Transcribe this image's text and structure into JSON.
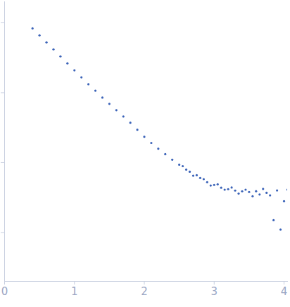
{
  "chart_data": {
    "type": "scatter",
    "log": "y",
    "tick_labels": "x",
    "grid": false,
    "color": "#3b63b8",
    "marker": "circle",
    "x": [
      0.4,
      0.5,
      0.6,
      0.7,
      0.8,
      0.9,
      1.0,
      1.1,
      1.2,
      1.3,
      1.4,
      1.5,
      1.6,
      1.7,
      1.8,
      1.9,
      2.0,
      2.1,
      2.2,
      2.3,
      2.4,
      2.5,
      2.55,
      2.6,
      2.65,
      2.7,
      2.75,
      2.8,
      2.85,
      2.9,
      2.95,
      3.0,
      3.05,
      3.1,
      3.15,
      3.2,
      3.25,
      3.3,
      3.35,
      3.4,
      3.45,
      3.5,
      3.55,
      3.6,
      3.65,
      3.7,
      3.75,
      3.8,
      3.85,
      3.9,
      3.95,
      4.0,
      4.05
    ],
    "values": [
      0.832,
      0.661,
      0.525,
      0.417,
      0.331,
      0.263,
      0.209,
      0.166,
      0.132,
      0.107,
      0.0851,
      0.0692,
      0.0562,
      0.0457,
      0.0372,
      0.0295,
      0.0234,
      0.0191,
      0.0158,
      0.0132,
      0.011,
      0.00933,
      0.0089,
      0.00794,
      0.0074,
      0.0065,
      0.0066,
      0.00603,
      0.0058,
      0.00525,
      0.0047,
      0.00479,
      0.0049,
      0.00437,
      0.0041,
      0.00417,
      0.0044,
      0.00398,
      0.0036,
      0.00389,
      0.0041,
      0.0038,
      0.0033,
      0.0039,
      0.0035,
      0.0042,
      0.0037,
      0.0034,
      0.0015,
      0.004,
      0.0011,
      0.0028,
      0.0041
    ],
    "xlim": [
      0,
      4.05
    ],
    "xticks": [
      0,
      1,
      2,
      3,
      4
    ],
    "ylim": [
      0.0002,
      2
    ],
    "yticks": [
      0.001,
      0.01,
      0.1,
      1
    ]
  }
}
